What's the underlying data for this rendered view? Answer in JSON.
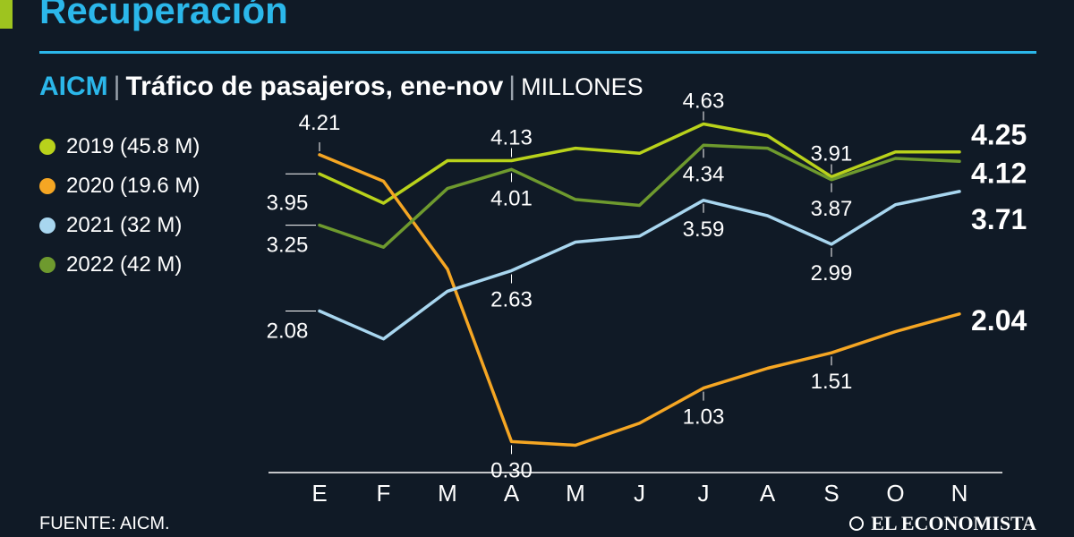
{
  "header": {
    "title": "Recuperación",
    "source_name": "AICM",
    "separator": "|",
    "description": "Tráfico de pasajeros, ene-nov",
    "unit": "MILLONES"
  },
  "footer": {
    "source": "FUENTE: AICM.",
    "brand": "EL ECONOMISTA"
  },
  "colors": {
    "background": "#101a26",
    "accent": "#2bb7ea",
    "bar": "#9ec41f",
    "axis": "#ffffff"
  },
  "chart_data": {
    "type": "line",
    "categories": [
      "E",
      "F",
      "M",
      "A",
      "M",
      "J",
      "J",
      "A",
      "S",
      "O",
      "N"
    ],
    "ylim": [
      0,
      5.1
    ],
    "legend_position": "left",
    "grid": false,
    "series": [
      {
        "name": "2019 (45.8 M)",
        "color": "#b9d21b",
        "values": [
          3.95,
          3.55,
          4.13,
          4.13,
          4.3,
          4.23,
          4.63,
          4.47,
          3.91,
          4.25,
          4.25
        ],
        "labels": [
          {
            "index": 0,
            "text": "3.95",
            "pos": "above-left"
          },
          {
            "index": 3,
            "text": "4.13",
            "pos": "above"
          },
          {
            "index": 6,
            "text": "4.63",
            "pos": "above"
          },
          {
            "index": 8,
            "text": "3.91",
            "pos": "above"
          }
        ],
        "end_label": "4.25"
      },
      {
        "name": "2020 (19.6 M)",
        "color": "#f5a623",
        "values": [
          4.21,
          3.85,
          2.65,
          0.3,
          0.25,
          0.55,
          1.03,
          1.3,
          1.51,
          1.8,
          2.04
        ],
        "labels": [
          {
            "index": 0,
            "text": "4.21",
            "pos": "above"
          },
          {
            "index": 3,
            "text": "0.30",
            "pos": "below"
          },
          {
            "index": 6,
            "text": "1.03",
            "pos": "below"
          },
          {
            "index": 8,
            "text": "1.51",
            "pos": "below"
          }
        ],
        "end_label": "2.04"
      },
      {
        "name": "2021 (32 M)",
        "color": "#a8d6ef",
        "values": [
          2.08,
          1.7,
          2.35,
          2.63,
          3.02,
          3.1,
          3.59,
          3.38,
          2.99,
          3.53,
          3.71
        ],
        "labels": [
          {
            "index": 0,
            "text": "2.08",
            "pos": "below-left"
          },
          {
            "index": 3,
            "text": "2.63",
            "pos": "below"
          },
          {
            "index": 6,
            "text": "3.59",
            "pos": "below"
          },
          {
            "index": 8,
            "text": "2.99",
            "pos": "below"
          }
        ],
        "end_label": "3.71"
      },
      {
        "name": "2022 (42 M)",
        "color": "#6e9a2e",
        "values": [
          3.25,
          2.95,
          3.75,
          4.01,
          3.6,
          3.52,
          4.34,
          4.3,
          3.87,
          4.16,
          4.12
        ],
        "labels": [
          {
            "index": 0,
            "text": "3.25",
            "pos": "below-left"
          },
          {
            "index": 3,
            "text": "4.01",
            "pos": "below"
          },
          {
            "index": 6,
            "text": "4.34",
            "pos": "below"
          },
          {
            "index": 8,
            "text": "3.87",
            "pos": "below"
          }
        ],
        "end_label": "4.12"
      }
    ]
  }
}
